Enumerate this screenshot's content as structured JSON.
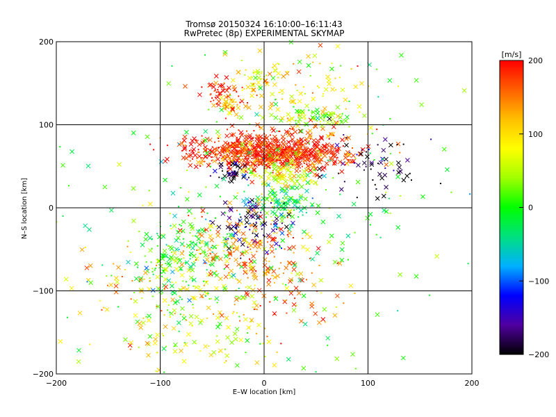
{
  "chart_data": {
    "type": "scatter",
    "title": "Tromsø 20150324 16:10:00–16:11:43",
    "subtitle": "RwPretec (8p) EXPERIMENTAL SKYMAP",
    "xlabel": "E–W location [km]",
    "ylabel": "N–S location [km]",
    "xlim": [
      -200,
      200
    ],
    "ylim": [
      -200,
      200
    ],
    "xticks": [
      "−200",
      "−100",
      "0",
      "100",
      "200"
    ],
    "yticks": [
      "−200",
      "−100",
      "0",
      "100",
      "200"
    ],
    "xtick_values": [
      -200,
      -100,
      0,
      100,
      200
    ],
    "ytick_values": [
      -200,
      -100,
      0,
      100,
      200
    ],
    "grid": true,
    "colorbar": {
      "label": "[m/s]",
      "range": [
        -200,
        200
      ],
      "ticks": [
        "−200",
        "−100",
        "0",
        "100",
        "200"
      ],
      "tick_values": [
        -200,
        -100,
        0,
        100,
        200
      ],
      "colors": [
        "#000000",
        "#5000a0",
        "#0000ff",
        "#00b0ff",
        "#00e080",
        "#00ff00",
        "#a0ff00",
        "#ffff00",
        "#ffc000",
        "#ff6000",
        "#ff0000"
      ]
    },
    "series": [
      {
        "markers": "cross (x) and dot",
        "clusters": [
          {
            "x": 10,
            "y": 70,
            "sx": 35,
            "sy": 12,
            "n": 500,
            "v": 190
          },
          {
            "x": -30,
            "y": 68,
            "sx": 30,
            "sy": 10,
            "n": 180,
            "v": 185
          },
          {
            "x": 35,
            "y": 60,
            "sx": 25,
            "sy": 8,
            "n": 160,
            "v": 170
          },
          {
            "x": -40,
            "y": 140,
            "sx": 10,
            "sy": 8,
            "n": 50,
            "v": 190
          },
          {
            "x": -30,
            "y": 122,
            "sx": 6,
            "sy": 5,
            "n": 30,
            "v": 130
          },
          {
            "x": 55,
            "y": 110,
            "sx": 15,
            "sy": 6,
            "n": 60,
            "v": 40
          },
          {
            "x": 0,
            "y": 155,
            "sx": 12,
            "sy": 8,
            "n": 40,
            "v": 90
          },
          {
            "x": 15,
            "y": 5,
            "sx": 15,
            "sy": 10,
            "n": 100,
            "v": -10
          },
          {
            "x": 20,
            "y": 40,
            "sx": 20,
            "sy": 8,
            "n": 90,
            "v": 60
          },
          {
            "x": -30,
            "y": 42,
            "sx": 10,
            "sy": 5,
            "n": 40,
            "v": -195
          },
          {
            "x": -80,
            "y": -60,
            "sx": 25,
            "sy": 30,
            "n": 200,
            "v": 0
          },
          {
            "x": -20,
            "y": -50,
            "sx": 25,
            "sy": 30,
            "n": 180,
            "v": 140
          },
          {
            "x": -10,
            "y": -20,
            "sx": 20,
            "sy": 15,
            "n": 80,
            "v": -160
          },
          {
            "x": -50,
            "y": -140,
            "sx": 40,
            "sy": 30,
            "n": 120,
            "v": 60
          },
          {
            "x": 100,
            "y": 50,
            "sx": 25,
            "sy": 20,
            "n": 60,
            "v": -190
          },
          {
            "x": 20,
            "y": -90,
            "sx": 30,
            "sy": 30,
            "n": 80,
            "v": 150
          },
          {
            "x": -120,
            "y": -100,
            "sx": 40,
            "sy": 40,
            "n": 80,
            "v": 120
          },
          {
            "x": 30,
            "y": 140,
            "sx": 40,
            "sy": 30,
            "n": 100,
            "v": 100
          },
          {
            "x": 0,
            "y": 0,
            "sx": 100,
            "sy": 100,
            "n": 250,
            "v": 0
          }
        ]
      }
    ]
  }
}
